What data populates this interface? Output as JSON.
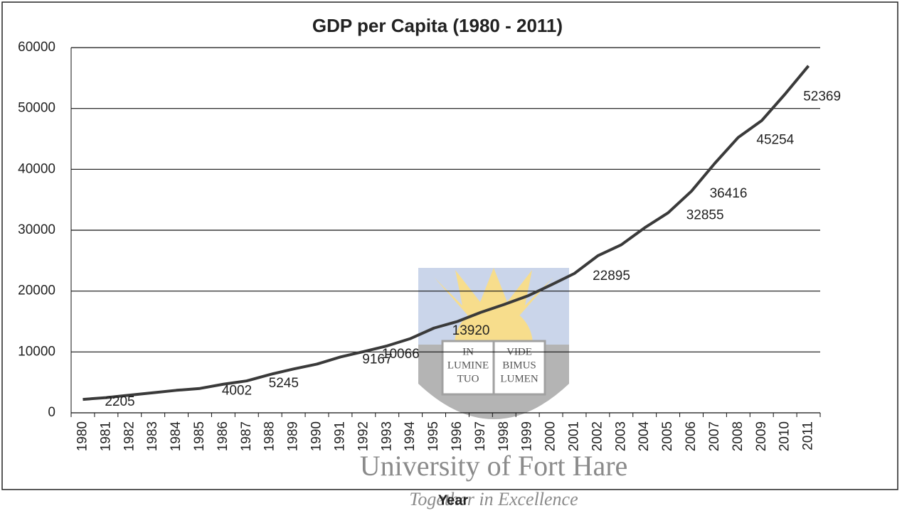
{
  "chart_data": {
    "type": "line",
    "title": "GDP per Capita (1980 - 2011)",
    "x_label": "Year",
    "categories": [
      "1980",
      "1981",
      "1982",
      "1983",
      "1984",
      "1985",
      "1986",
      "1987",
      "1988",
      "1989",
      "1990",
      "1991",
      "1992",
      "1993",
      "1994",
      "1995",
      "1996",
      "1997",
      "1998",
      "1999",
      "2000",
      "2001",
      "2002",
      "2003",
      "2004",
      "2005",
      "2006",
      "2007",
      "2008",
      "2009",
      "2010",
      "2011"
    ],
    "series": [
      {
        "name": "GDP per Capita",
        "color": "#3a3a3a",
        "values": [
          2205,
          2500,
          2900,
          3300,
          3700,
          4002,
          4700,
          5245,
          6300,
          7200,
          8000,
          9167,
          10066,
          11000,
          12200,
          13920,
          15000,
          16500,
          17800,
          19200,
          21000,
          22895,
          25800,
          27600,
          30400,
          32855,
          36416,
          41000,
          45254,
          48000,
          52369,
          57000
        ],
        "value_labels": [
          "2205",
          null,
          null,
          null,
          null,
          "4002",
          null,
          "5245",
          null,
          null,
          null,
          "9167",
          "10066",
          null,
          null,
          "13920",
          null,
          null,
          null,
          null,
          null,
          "22895",
          null,
          null,
          null,
          "32855",
          "36416",
          null,
          "45254",
          null,
          "52369",
          null
        ]
      }
    ],
    "ylim": [
      0,
      60000
    ],
    "yticks": [
      0,
      10000,
      20000,
      30000,
      40000,
      50000,
      60000
    ],
    "grid": true
  },
  "watermark": {
    "book_left": [
      "IN",
      "LUMINE",
      "TUO"
    ],
    "book_right": [
      "VIDE",
      "BIMUS",
      "LUMEN"
    ],
    "name": "University of Fort Hare",
    "motto": "Together in Excellence"
  }
}
